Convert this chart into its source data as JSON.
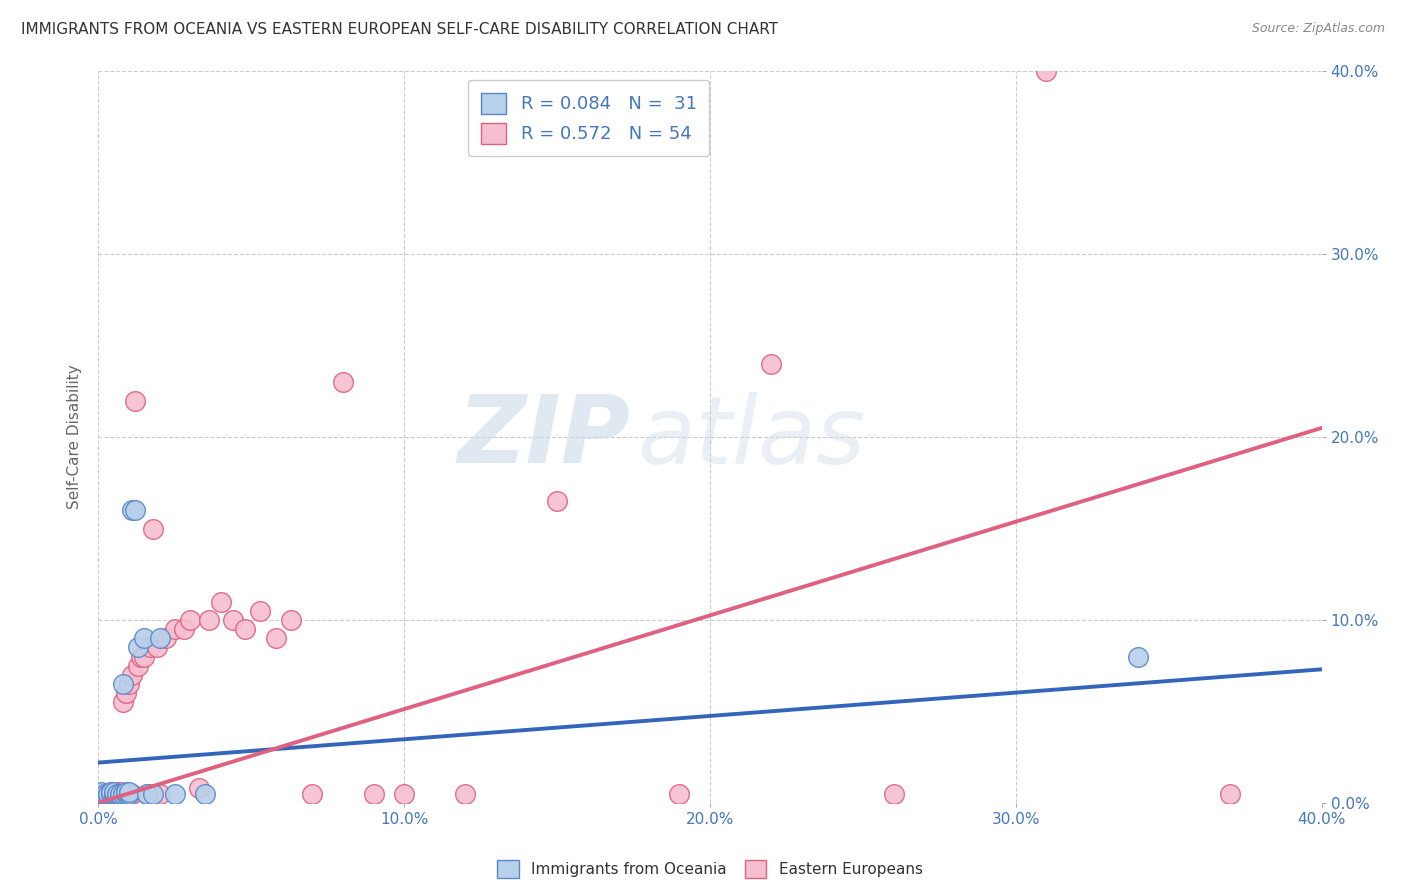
{
  "title": "IMMIGRANTS FROM OCEANIA VS EASTERN EUROPEAN SELF-CARE DISABILITY CORRELATION CHART",
  "source": "Source: ZipAtlas.com",
  "ylabel": "Self-Care Disability",
  "xlim": [
    0.0,
    0.4
  ],
  "ylim": [
    0.0,
    0.4
  ],
  "xticks": [
    0.0,
    0.1,
    0.2,
    0.3,
    0.4
  ],
  "yticks": [
    0.0,
    0.1,
    0.2,
    0.3,
    0.4
  ],
  "xtick_labels": [
    "0.0%",
    "10.0%",
    "20.0%",
    "30.0%",
    "40.0%"
  ],
  "ytick_labels_right": [
    "0.0%",
    "10.0%",
    "20.0%",
    "30.0%",
    "40.0%"
  ],
  "series1_color": "#b8d0ea",
  "series1_edge": "#5588cc",
  "series2_color": "#f5bfcf",
  "series2_edge": "#e06080",
  "line1_color": "#3366bb",
  "line2_color": "#e06080",
  "watermark_zip": "ZIP",
  "watermark_atlas": "atlas",
  "title_color": "#333333",
  "axis_label_color": "#666666",
  "tick_color": "#4477bb",
  "grid_color": "#cccccc",
  "background_color": "#ffffff",
  "oceania_x": [
    0.001,
    0.001,
    0.002,
    0.002,
    0.003,
    0.003,
    0.004,
    0.004,
    0.005,
    0.005,
    0.005,
    0.006,
    0.006,
    0.007,
    0.007,
    0.008,
    0.008,
    0.009,
    0.009,
    0.01,
    0.01,
    0.011,
    0.012,
    0.013,
    0.015,
    0.016,
    0.018,
    0.02,
    0.025,
    0.035,
    0.34
  ],
  "oceania_y": [
    0.005,
    0.006,
    0.004,
    0.005,
    0.004,
    0.005,
    0.005,
    0.006,
    0.004,
    0.005,
    0.006,
    0.004,
    0.005,
    0.004,
    0.005,
    0.005,
    0.065,
    0.005,
    0.006,
    0.005,
    0.006,
    0.16,
    0.16,
    0.085,
    0.09,
    0.005,
    0.005,
    0.09,
    0.005,
    0.005,
    0.08
  ],
  "eastern_x": [
    0.001,
    0.001,
    0.002,
    0.002,
    0.003,
    0.003,
    0.004,
    0.004,
    0.005,
    0.005,
    0.006,
    0.006,
    0.007,
    0.007,
    0.008,
    0.008,
    0.009,
    0.009,
    0.01,
    0.01,
    0.011,
    0.011,
    0.012,
    0.013,
    0.014,
    0.015,
    0.016,
    0.017,
    0.018,
    0.019,
    0.02,
    0.022,
    0.025,
    0.028,
    0.03,
    0.033,
    0.036,
    0.04,
    0.044,
    0.048,
    0.053,
    0.058,
    0.063,
    0.07,
    0.08,
    0.09,
    0.1,
    0.12,
    0.15,
    0.19,
    0.22,
    0.26,
    0.31,
    0.37
  ],
  "eastern_y": [
    0.003,
    0.005,
    0.003,
    0.005,
    0.004,
    0.005,
    0.005,
    0.006,
    0.005,
    0.006,
    0.005,
    0.006,
    0.005,
    0.006,
    0.005,
    0.055,
    0.005,
    0.06,
    0.005,
    0.065,
    0.005,
    0.07,
    0.22,
    0.075,
    0.08,
    0.08,
    0.005,
    0.085,
    0.15,
    0.085,
    0.005,
    0.09,
    0.095,
    0.095,
    0.1,
    0.008,
    0.1,
    0.11,
    0.1,
    0.095,
    0.105,
    0.09,
    0.1,
    0.005,
    0.23,
    0.005,
    0.005,
    0.005,
    0.165,
    0.005,
    0.24,
    0.005,
    0.4,
    0.005
  ],
  "line1_x0": 0.0,
  "line1_y0": 0.022,
  "line1_x1": 0.4,
  "line1_y1": 0.073,
  "line2_x0": 0.0,
  "line2_y0": 0.0,
  "line2_x1": 0.4,
  "line2_y1": 0.205
}
